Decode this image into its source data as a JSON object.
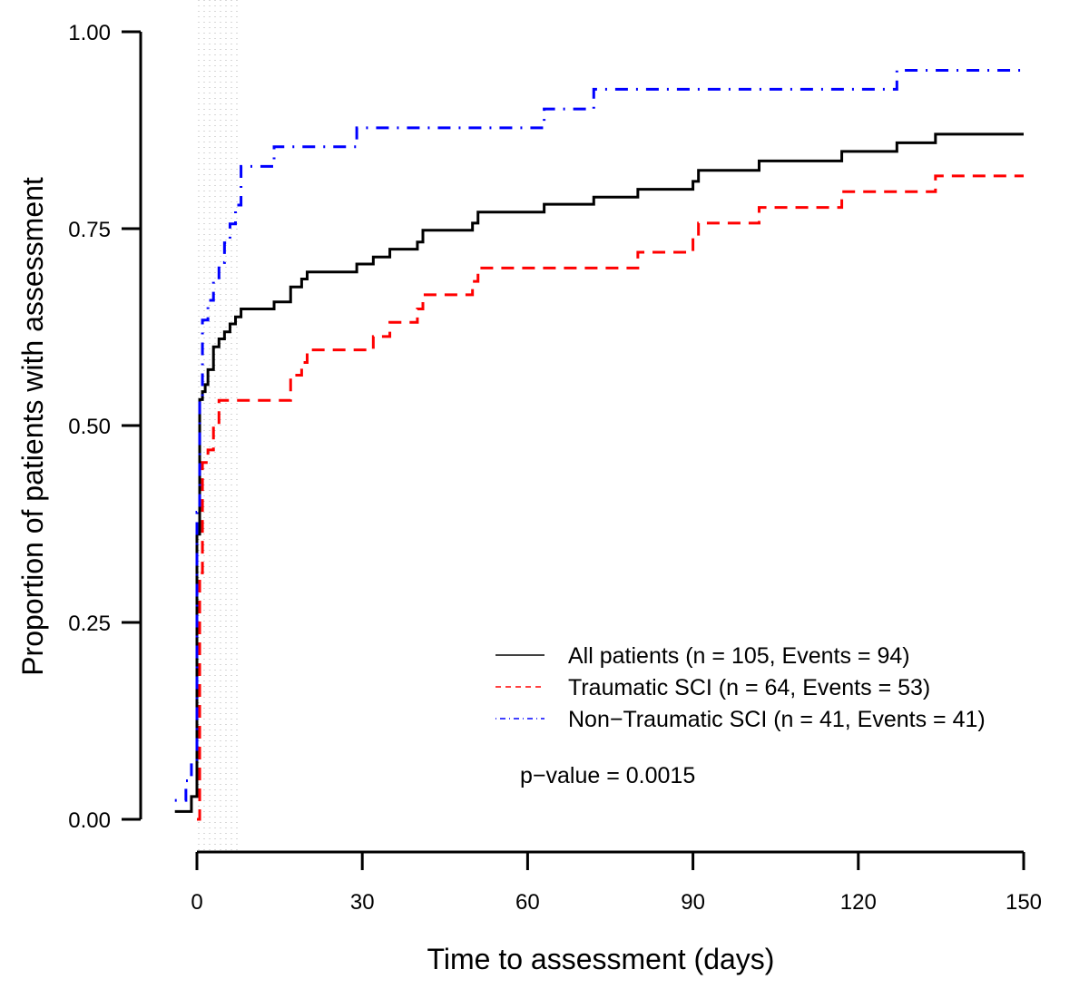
{
  "chart_data": {
    "type": "line",
    "subtype": "kaplan-meier-cumulative-incidence-step",
    "title": "",
    "xlabel": "Time to assessment (days)",
    "ylabel": "Proportion of patients with assessment",
    "xlim": [
      0,
      150
    ],
    "ylim": [
      0,
      1
    ],
    "x_ticks": [
      0,
      30,
      60,
      90,
      120,
      150
    ],
    "x_tick_labels": [
      "0",
      "30",
      "60",
      "90",
      "120",
      "150"
    ],
    "y_ticks": [
      0,
      0.25,
      0.5,
      0.75,
      1.0
    ],
    "y_tick_labels": [
      "0.00",
      "0.25",
      "0.50",
      "0.75",
      "1.00"
    ],
    "grid": false,
    "shaded_band": {
      "from": 0,
      "to": 8,
      "style": "dotted-grey"
    },
    "legend_position": "bottom-right",
    "annotation": "p−value = 0.0015",
    "series": [
      {
        "name": "All patients (n = 105, Events = 94)",
        "color": "#000000",
        "dash": "solid",
        "x": [
          -4,
          -1,
          0,
          0.5,
          1,
          1.5,
          2,
          3,
          4,
          5,
          6,
          7,
          8,
          14,
          17,
          19,
          20,
          29,
          32,
          35,
          40,
          41,
          50,
          51,
          63,
          72,
          80,
          90,
          91,
          102,
          117,
          127,
          134,
          150
        ],
        "y": [
          0.01,
          0.029,
          0.362,
          0.533,
          0.543,
          0.552,
          0.571,
          0.6,
          0.61,
          0.619,
          0.629,
          0.638,
          0.648,
          0.657,
          0.676,
          0.686,
          0.695,
          0.705,
          0.714,
          0.724,
          0.733,
          0.748,
          0.757,
          0.771,
          0.781,
          0.79,
          0.8,
          0.81,
          0.824,
          0.836,
          0.848,
          0.859,
          0.87,
          0.87
        ]
      },
      {
        "name": "Traumatic SCI (n = 64, Events = 53)",
        "color": "#ff0000",
        "dash": "dashed",
        "x": [
          0,
          0.5,
          1,
          2,
          3,
          4,
          17,
          19,
          20,
          32,
          35,
          40,
          41,
          50,
          51,
          80,
          90,
          91,
          102,
          117,
          134,
          150
        ],
        "y": [
          0.0,
          0.313,
          0.453,
          0.469,
          0.5,
          0.532,
          0.564,
          0.58,
          0.596,
          0.613,
          0.631,
          0.648,
          0.666,
          0.683,
          0.7,
          0.72,
          0.738,
          0.757,
          0.777,
          0.797,
          0.817,
          0.817
        ]
      },
      {
        "name": "Non−Traumatic SCI (n = 41, Events = 41)",
        "color": "#0000ff",
        "dash": "dotdash",
        "x": [
          -4,
          -2,
          -1,
          0,
          0.5,
          1,
          2,
          3,
          4,
          5,
          6,
          7,
          8,
          14,
          29,
          63,
          72,
          127,
          150
        ],
        "y": [
          0.024,
          0.049,
          0.073,
          0.39,
          0.537,
          0.634,
          0.659,
          0.683,
          0.707,
          0.732,
          0.756,
          0.78,
          0.829,
          0.854,
          0.878,
          0.902,
          0.927,
          0.951,
          0.951
        ]
      }
    ]
  }
}
